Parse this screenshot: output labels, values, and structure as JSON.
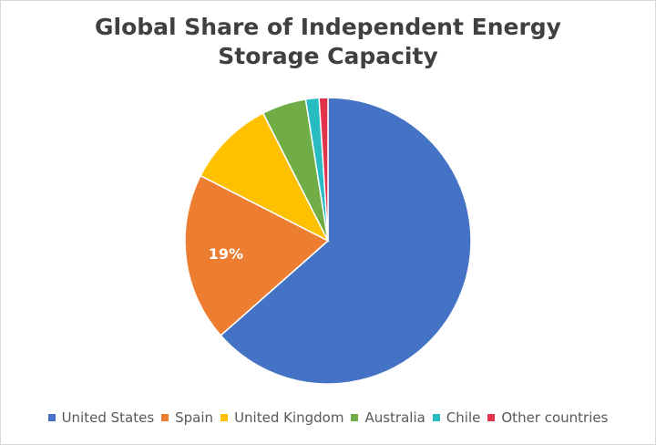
{
  "chart_data": {
    "type": "pie",
    "title_line1": "Global Share of Independent Energy",
    "title_line2": "Storage Capacity",
    "categories": [
      "United States",
      "Spain",
      "United Kingdom",
      "Australia",
      "Chile",
      "Other countries"
    ],
    "values": [
      63.5,
      19,
      10,
      5,
      1.5,
      1
    ],
    "unit": "%",
    "colors": [
      "#4472c4",
      "#ed7d31",
      "#ffc000",
      "#70ad47",
      "#26bcc1",
      "#e0334b"
    ],
    "data_labels": [
      {
        "category": "Spain",
        "label": "19%"
      }
    ],
    "legend_position": "bottom",
    "start_angle_deg": 0,
    "direction": "clockwise"
  }
}
